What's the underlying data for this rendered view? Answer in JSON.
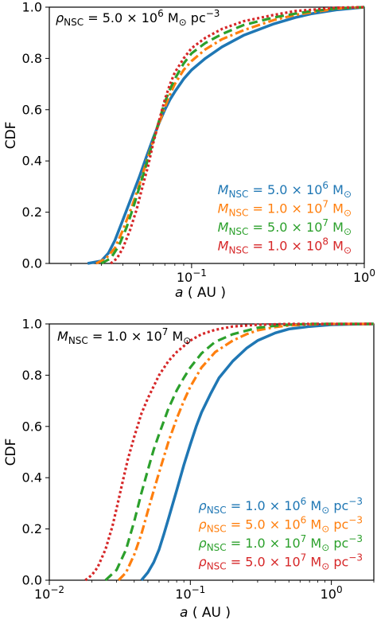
{
  "colors": {
    "blue": "#1f77b4",
    "orange": "#ff7f0e",
    "green": "#2ca02c",
    "red": "#d62728"
  },
  "chart_data": [
    {
      "type": "line",
      "xscale": "log",
      "xlim": [
        0.015,
        1.0
      ],
      "ylim": [
        0.0,
        1.0
      ],
      "xlabel": "a ( AU )",
      "ylabel": "CDF",
      "xticks": [
        {
          "value": 0.1,
          "base": "10",
          "exp": "−1"
        },
        {
          "value": 1.0,
          "base": "10",
          "exp": "0"
        }
      ],
      "yticks": [
        "0.0",
        "0.2",
        "0.4",
        "0.6",
        "0.8",
        "1.0"
      ],
      "annotation": {
        "sym": "ρ",
        "sub": "NSC",
        "text": " = 5.0 × 10",
        "sup": "6",
        "unit": " M",
        "unit_sub": "⊙",
        "tail": " pc",
        "tail_sup": "−3"
      },
      "legend_position": "lower-right",
      "series": [
        {
          "name_sym": "M",
          "name_sub": "NSC",
          "name_text": " = 5.0 × 10",
          "name_sup": "6",
          "name_unit": " M",
          "name_unit_sub": "⊙",
          "color": "blue",
          "style": "solid",
          "x": [
            0.025,
            0.03,
            0.033,
            0.036,
            0.04,
            0.045,
            0.05,
            0.055,
            0.06,
            0.065,
            0.07,
            0.075,
            0.08,
            0.09,
            0.1,
            0.12,
            0.15,
            0.2,
            0.3,
            0.4,
            0.5,
            0.7,
            1.0
          ],
          "y": [
            0.0,
            0.01,
            0.04,
            0.09,
            0.17,
            0.26,
            0.34,
            0.42,
            0.49,
            0.55,
            0.6,
            0.64,
            0.67,
            0.72,
            0.755,
            0.8,
            0.845,
            0.89,
            0.935,
            0.96,
            0.975,
            0.99,
            1.0
          ]
        },
        {
          "name_sym": "M",
          "name_sub": "NSC",
          "name_text": " = 1.0 × 10",
          "name_sup": "7",
          "name_unit": " M",
          "name_unit_sub": "⊙",
          "color": "orange",
          "style": "dashdot",
          "x": [
            0.028,
            0.032,
            0.036,
            0.04,
            0.045,
            0.05,
            0.055,
            0.06,
            0.065,
            0.07,
            0.075,
            0.08,
            0.09,
            0.1,
            0.12,
            0.15,
            0.2,
            0.3,
            0.4,
            0.5,
            0.7,
            1.0
          ],
          "y": [
            0.0,
            0.02,
            0.06,
            0.13,
            0.22,
            0.31,
            0.4,
            0.48,
            0.55,
            0.61,
            0.66,
            0.7,
            0.755,
            0.79,
            0.835,
            0.875,
            0.91,
            0.95,
            0.97,
            0.98,
            0.995,
            1.0
          ]
        },
        {
          "name_sym": "M",
          "name_sub": "NSC",
          "name_text": " = 5.0 × 10",
          "name_sup": "7",
          "name_unit": " M",
          "name_unit_sub": "⊙",
          "color": "green",
          "style": "dashed",
          "x": [
            0.03,
            0.034,
            0.038,
            0.042,
            0.046,
            0.05,
            0.055,
            0.06,
            0.065,
            0.07,
            0.075,
            0.08,
            0.09,
            0.1,
            0.12,
            0.15,
            0.2,
            0.3,
            0.4,
            0.5,
            0.7,
            1.0
          ],
          "y": [
            0.0,
            0.02,
            0.07,
            0.14,
            0.22,
            0.3,
            0.39,
            0.48,
            0.56,
            0.63,
            0.68,
            0.72,
            0.78,
            0.82,
            0.86,
            0.895,
            0.93,
            0.96,
            0.975,
            0.985,
            0.995,
            1.0
          ]
        },
        {
          "name_sym": "M",
          "name_sub": "NSC",
          "name_text": " = 1.0 × 10",
          "name_sup": "8",
          "name_unit": " M",
          "name_unit_sub": "⊙",
          "color": "red",
          "style": "dotted",
          "x": [
            0.034,
            0.037,
            0.04,
            0.044,
            0.048,
            0.052,
            0.056,
            0.06,
            0.065,
            0.07,
            0.075,
            0.08,
            0.09,
            0.1,
            0.12,
            0.15,
            0.2,
            0.3,
            0.4,
            0.5,
            0.7,
            1.0
          ],
          "y": [
            0.0,
            0.02,
            0.06,
            0.13,
            0.21,
            0.3,
            0.38,
            0.47,
            0.56,
            0.64,
            0.7,
            0.745,
            0.8,
            0.84,
            0.88,
            0.915,
            0.945,
            0.97,
            0.985,
            0.99,
            0.998,
            1.0
          ]
        }
      ]
    },
    {
      "type": "line",
      "xscale": "log",
      "xlim": [
        0.01,
        2.0
      ],
      "ylim": [
        0.0,
        1.0
      ],
      "xlabel": "a ( AU )",
      "ylabel": "CDF",
      "xticks": [
        {
          "value": 0.01,
          "base": "10",
          "exp": "−2"
        },
        {
          "value": 0.1,
          "base": "10",
          "exp": "−1"
        },
        {
          "value": 1.0,
          "base": "10",
          "exp": "0"
        }
      ],
      "yticks": [
        "0.0",
        "0.2",
        "0.4",
        "0.6",
        "0.8",
        "1.0"
      ],
      "annotation": {
        "sym": "M",
        "sub": "NSC",
        "text": " = 1.0 × 10",
        "sup": "7",
        "unit": " M",
        "unit_sub": "⊙",
        "tail": "",
        "tail_sup": ""
      },
      "legend_position": "lower-right",
      "series": [
        {
          "name_sym": "ρ",
          "name_sub": "NSC",
          "name_text": " = 1.0 × 10",
          "name_sup": "6",
          "name_unit": " M",
          "name_unit_sub": "⊙",
          "name_tail": " pc",
          "name_tail_sup": "−3",
          "color": "blue",
          "style": "solid",
          "x": [
            0.045,
            0.05,
            0.055,
            0.06,
            0.065,
            0.07,
            0.08,
            0.09,
            0.1,
            0.11,
            0.12,
            0.14,
            0.16,
            0.2,
            0.25,
            0.3,
            0.4,
            0.5,
            0.7,
            1.0,
            1.5,
            2.0
          ],
          "y": [
            0.0,
            0.03,
            0.07,
            0.12,
            0.18,
            0.24,
            0.35,
            0.45,
            0.53,
            0.6,
            0.655,
            0.73,
            0.79,
            0.855,
            0.905,
            0.935,
            0.965,
            0.98,
            0.99,
            0.997,
            0.999,
            1.0
          ]
        },
        {
          "name_sym": "ρ",
          "name_sub": "NSC",
          "name_text": " = 5.0 × 10",
          "name_sup": "6",
          "name_unit": " M",
          "name_unit_sub": "⊙",
          "name_tail": " pc",
          "name_tail_sup": "−3",
          "color": "orange",
          "style": "dashdot",
          "x": [
            0.031,
            0.035,
            0.04,
            0.045,
            0.05,
            0.055,
            0.06,
            0.07,
            0.08,
            0.09,
            0.1,
            0.12,
            0.15,
            0.2,
            0.25,
            0.3,
            0.4,
            0.5,
            0.7,
            1.0,
            1.5,
            2.0
          ],
          "y": [
            0.0,
            0.03,
            0.1,
            0.18,
            0.27,
            0.35,
            0.42,
            0.54,
            0.63,
            0.7,
            0.755,
            0.83,
            0.89,
            0.935,
            0.96,
            0.975,
            0.988,
            0.994,
            0.998,
            1.0,
            1.0,
            1.0
          ]
        },
        {
          "name_sym": "ρ",
          "name_sub": "NSC",
          "name_text": " = 1.0 × 10",
          "name_sup": "7",
          "name_unit": " M",
          "name_unit_sub": "⊙",
          "name_tail": " pc",
          "name_tail_sup": "−3",
          "color": "green",
          "style": "dashed",
          "x": [
            0.025,
            0.03,
            0.035,
            0.04,
            0.045,
            0.05,
            0.055,
            0.06,
            0.07,
            0.08,
            0.09,
            0.1,
            0.12,
            0.15,
            0.2,
            0.3,
            0.4,
            0.5,
            0.7,
            1.0,
            2.0
          ],
          "y": [
            0.0,
            0.04,
            0.12,
            0.23,
            0.34,
            0.43,
            0.51,
            0.57,
            0.67,
            0.74,
            0.79,
            0.83,
            0.885,
            0.93,
            0.96,
            0.985,
            0.993,
            0.997,
            1.0,
            1.0,
            1.0
          ]
        },
        {
          "name_sym": "ρ",
          "name_sub": "NSC",
          "name_text": " = 5.0 × 10",
          "name_sup": "7",
          "name_unit": " M",
          "name_unit_sub": "⊙",
          "name_tail": " pc",
          "name_tail_sup": "−3",
          "color": "red",
          "style": "dotted",
          "x": [
            0.018,
            0.02,
            0.022,
            0.025,
            0.028,
            0.03,
            0.033,
            0.036,
            0.04,
            0.045,
            0.05,
            0.06,
            0.07,
            0.08,
            0.1,
            0.12,
            0.15,
            0.2,
            0.3,
            0.5,
            1.0,
            2.0
          ],
          "y": [
            0.0,
            0.02,
            0.05,
            0.12,
            0.21,
            0.28,
            0.38,
            0.47,
            0.56,
            0.65,
            0.71,
            0.8,
            0.855,
            0.89,
            0.935,
            0.96,
            0.977,
            0.99,
            0.997,
            1.0,
            1.0,
            1.0
          ]
        }
      ]
    }
  ]
}
